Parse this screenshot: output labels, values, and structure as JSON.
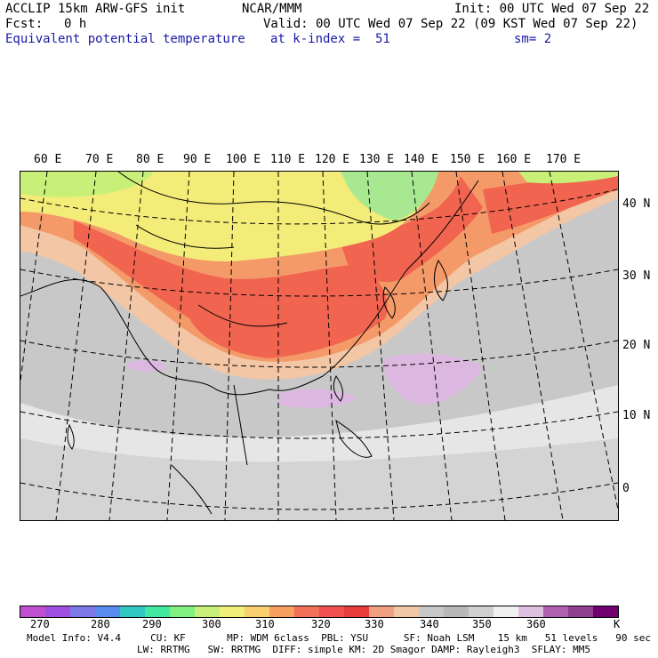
{
  "header": {
    "model_title": "ACCLIP 15km ARW-GFS init",
    "org": "NCAR/MMM",
    "init": "Init: 00 UTC Wed 07 Sep 22",
    "fcst_label": "Fcst:",
    "fcst_value": "0 h",
    "valid": "Valid: 00 UTC Wed 07 Sep 22 (09 KST Wed 07 Sep 22)",
    "field_name": "Equivalent potential temperature",
    "level": "at k-index =  51",
    "smoothing": "sm= 2"
  },
  "map": {
    "lon_labels": [
      "60 E",
      "70 E",
      "80 E",
      "90 E",
      "100 E",
      "110 E",
      "120 E",
      "130 E",
      "140 E",
      "150 E",
      "160 E",
      "170 E"
    ],
    "lat_labels": [
      "40 N",
      "30 N",
      "20 N",
      "10 N",
      "0"
    ]
  },
  "colorbar": {
    "colors": [
      "#c050d0",
      "#a050e0",
      "#7c78e8",
      "#5a8cf0",
      "#30c8c0",
      "#40e8a0",
      "#80f080",
      "#c8f078",
      "#f0f078",
      "#f8d070",
      "#f8a060",
      "#f07058",
      "#f05050",
      "#e83c3c",
      "#f0a080",
      "#f0c8a8",
      "#c8c8c8",
      "#b8b8b8",
      "#d0d0d0",
      "#f0f0f0",
      "#e0c0e0",
      "#b060b0",
      "#904090",
      "#700070"
    ],
    "labels": [
      "270",
      "280",
      "290",
      "300",
      "310",
      "320",
      "330",
      "340",
      "350",
      "360",
      "K"
    ]
  },
  "footer": {
    "line1": "Model Info: V4.4     CU: KF       MP: WDM 6class  PBL: YSU      SF: Noah LSM    15 km   51 levels   90 sec",
    "line2": "LW: RRTMG   SW: RRTMG  DIFF: simple KM: 2D Smagor DAMP: Rayleigh3  SFLAY: MM5"
  }
}
